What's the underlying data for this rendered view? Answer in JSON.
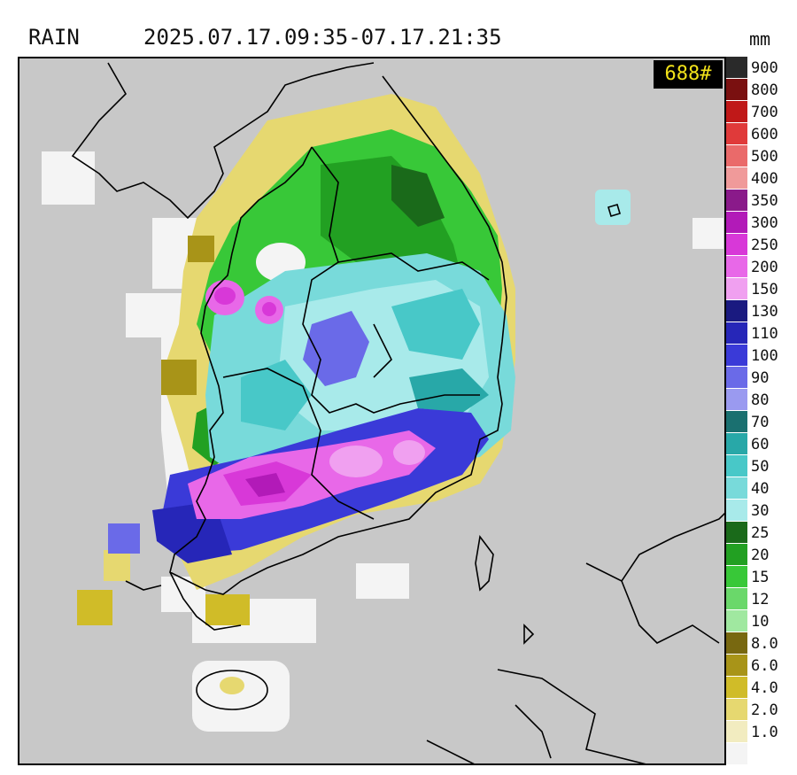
{
  "header": {
    "title": "RAIN",
    "time_range": "2025.07.17.09:35-07.17.21:35",
    "unit": "mm"
  },
  "badge": {
    "label": "688#",
    "bg": "#000000",
    "fg": "#f2e21a"
  },
  "map": {
    "background": "#c8c8c8",
    "coastline_color": "#000000",
    "description_icon": "korean-peninsula-coastline"
  },
  "legend": {
    "entries": [
      {
        "label": "900",
        "color": "#2a2a2a"
      },
      {
        "label": "800",
        "color": "#7a1010"
      },
      {
        "label": "700",
        "color": "#c01818"
      },
      {
        "label": "600",
        "color": "#e03a3a"
      },
      {
        "label": "500",
        "color": "#ea6a6a"
      },
      {
        "label": "400",
        "color": "#f09a9a"
      },
      {
        "label": "350",
        "color": "#8a1a8a"
      },
      {
        "label": "300",
        "color": "#b21ab8"
      },
      {
        "label": "250",
        "color": "#d838d8"
      },
      {
        "label": "200",
        "color": "#e868e8"
      },
      {
        "label": "150",
        "color": "#f0a0f0"
      },
      {
        "label": "130",
        "color": "#1a1a80"
      },
      {
        "label": "110",
        "color": "#2626b8"
      },
      {
        "label": "100",
        "color": "#3a3ad8"
      },
      {
        "label": "90",
        "color": "#6a6ae8"
      },
      {
        "label": "80",
        "color": "#9a9af0"
      },
      {
        "label": "70",
        "color": "#1a7070"
      },
      {
        "label": "60",
        "color": "#28a8a8"
      },
      {
        "label": "50",
        "color": "#48c8c8"
      },
      {
        "label": "40",
        "color": "#78dada"
      },
      {
        "label": "30",
        "color": "#a8eaea"
      },
      {
        "label": "25",
        "color": "#1a6a1a"
      },
      {
        "label": "20",
        "color": "#22a022"
      },
      {
        "label": "15",
        "color": "#38c838"
      },
      {
        "label": "12",
        "color": "#6ad86a"
      },
      {
        "label": "10",
        "color": "#a0e8a0"
      },
      {
        "label": "8.0",
        "color": "#786810"
      },
      {
        "label": "6.0",
        "color": "#a89418"
      },
      {
        "label": "4.0",
        "color": "#d0bc28"
      },
      {
        "label": "2.0",
        "color": "#e6d870"
      },
      {
        "label": "1.0",
        "color": "#f2ecc0"
      },
      {
        "label": "",
        "color": "#f4f4f4"
      }
    ]
  }
}
